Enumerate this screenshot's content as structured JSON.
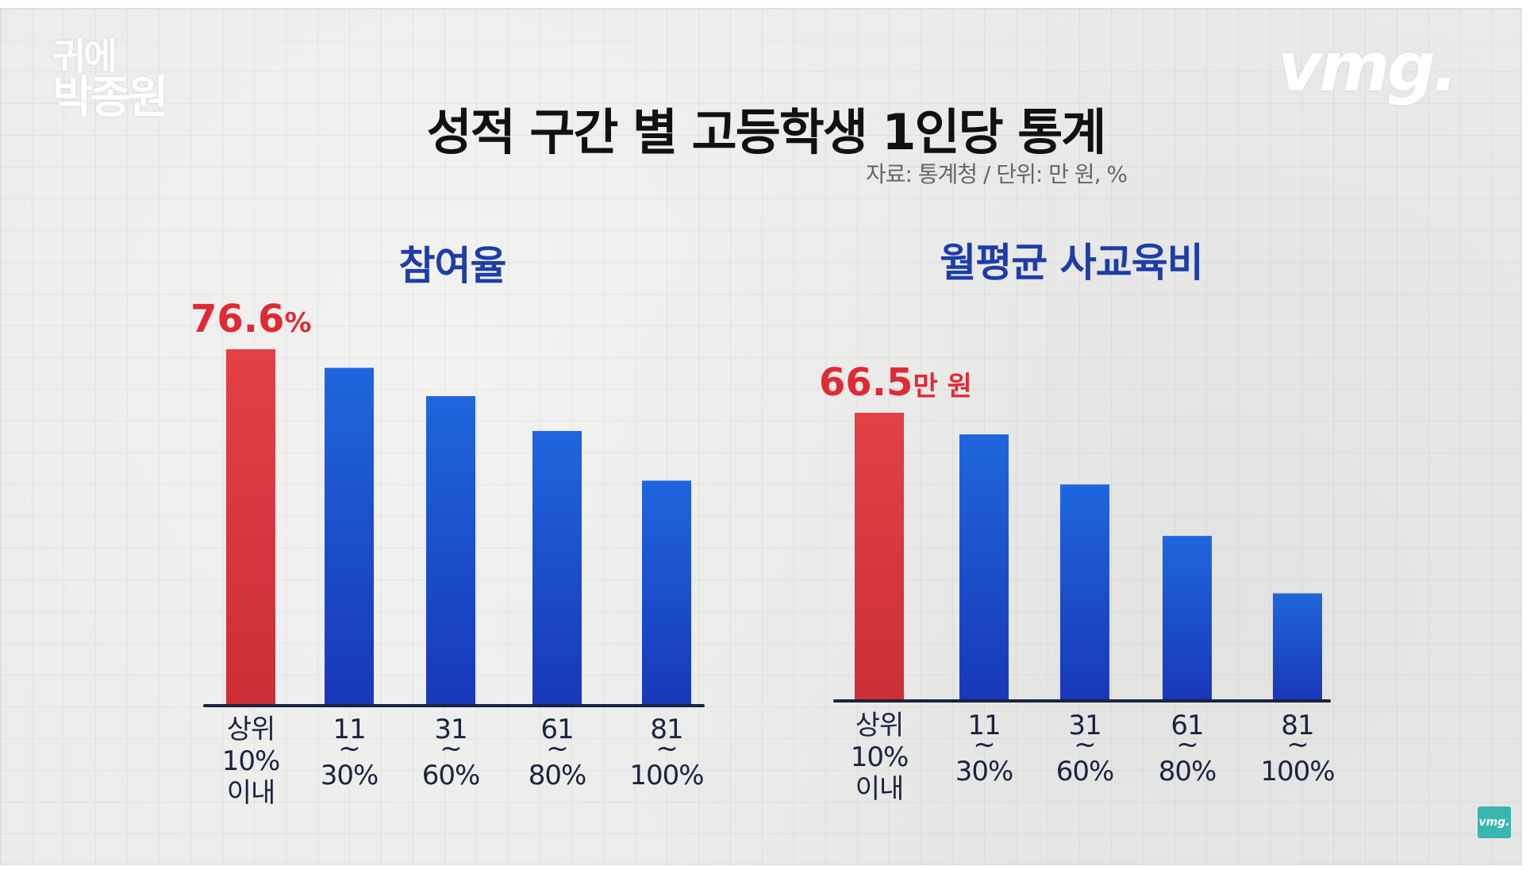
{
  "logos": {
    "show_name_line1": "귀에",
    "show_name_line2": "박종원",
    "brand": "vmg.",
    "corner_badge": "vmg."
  },
  "title": "성적 구간 별 고등학생 1인당 통계",
  "source_note": "자료: 통계청 / 단위: 만 원, %",
  "colors": {
    "top_bar": "#df3b3f",
    "other_bars": "#1e5ad6",
    "chart_title": "#1d3da8",
    "peak_label": "#e02a33",
    "background": "#ebebea"
  },
  "chart_data": [
    {
      "type": "bar",
      "title": "참여율",
      "unit": "%",
      "categories": [
        [
          "상위",
          "10%",
          "이내"
        ],
        [
          "11",
          "~",
          "30%"
        ],
        [
          "31",
          "~",
          "60%"
        ],
        [
          "61",
          "~",
          "80%"
        ],
        [
          "81",
          "~",
          "100%"
        ]
      ],
      "values": [
        76.6,
        72.6,
        66.5,
        59.0,
        48.3
      ],
      "value_labels": [
        {
          "number": "76.6",
          "suffix": "%"
        },
        null,
        null,
        null,
        null
      ],
      "ylim": [
        0,
        80
      ],
      "highlight_index": 0,
      "grid": false,
      "legend": "none"
    },
    {
      "type": "bar",
      "title": "월평균 사교육비",
      "unit": "만 원",
      "categories": [
        [
          "상위",
          "10%",
          "이내"
        ],
        [
          "11",
          "~",
          "30%"
        ],
        [
          "31",
          "~",
          "60%"
        ],
        [
          "61",
          "~",
          "80%"
        ],
        [
          "81",
          "~",
          "100%"
        ]
      ],
      "values": [
        66.5,
        61.5,
        49.9,
        38.0,
        24.7
      ],
      "value_labels": [
        {
          "number": "66.5",
          "suffix": "만 원"
        },
        null,
        null,
        null,
        null
      ],
      "ylim": [
        0,
        70
      ],
      "highlight_index": 0,
      "grid": false,
      "legend": "none"
    }
  ]
}
